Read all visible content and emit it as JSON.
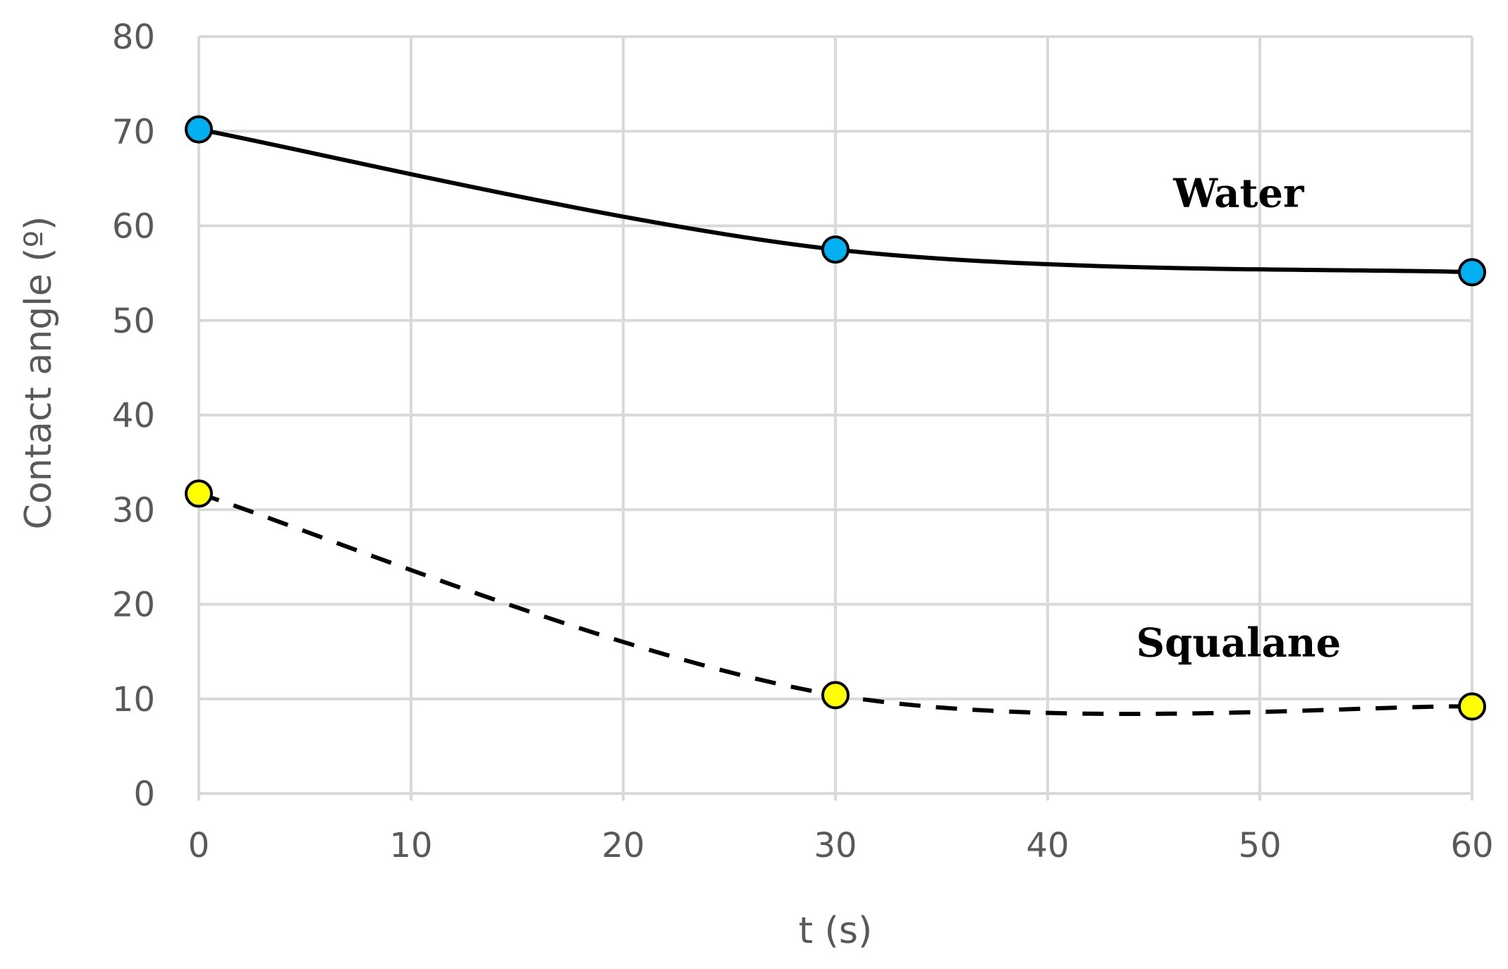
{
  "chart_data": {
    "type": "line",
    "title": "",
    "xlabel": "t (s)",
    "ylabel": "Contact angle (º)",
    "xlim": [
      0,
      60
    ],
    "ylim": [
      0,
      80
    ],
    "xticks": [
      0,
      10,
      20,
      30,
      40,
      50,
      60
    ],
    "yticks": [
      0,
      10,
      20,
      30,
      40,
      50,
      60,
      70,
      80
    ],
    "xtick_labels": [
      "0",
      "10",
      "20",
      "30",
      "40",
      "50",
      "60"
    ],
    "ytick_labels": [
      "0",
      "10",
      "20",
      "30",
      "40",
      "50",
      "60",
      "70",
      "80"
    ],
    "grid": true,
    "legend": "none",
    "series": [
      {
        "name": "Water",
        "x": [
          0,
          30,
          60
        ],
        "y": [
          70.2,
          57.5,
          55.1
        ],
        "line_style": "solid",
        "line_color": "#000000",
        "marker_color": "#00B0F0",
        "label_at": [
          49,
          62
        ]
      },
      {
        "name": "Squalane",
        "x": [
          0,
          30,
          60
        ],
        "y": [
          31.7,
          10.4,
          9.2
        ],
        "line_style": "dashed",
        "line_color": "#000000",
        "marker_color": "#FFFF00",
        "label_at": [
          49,
          14.5
        ]
      }
    ]
  }
}
